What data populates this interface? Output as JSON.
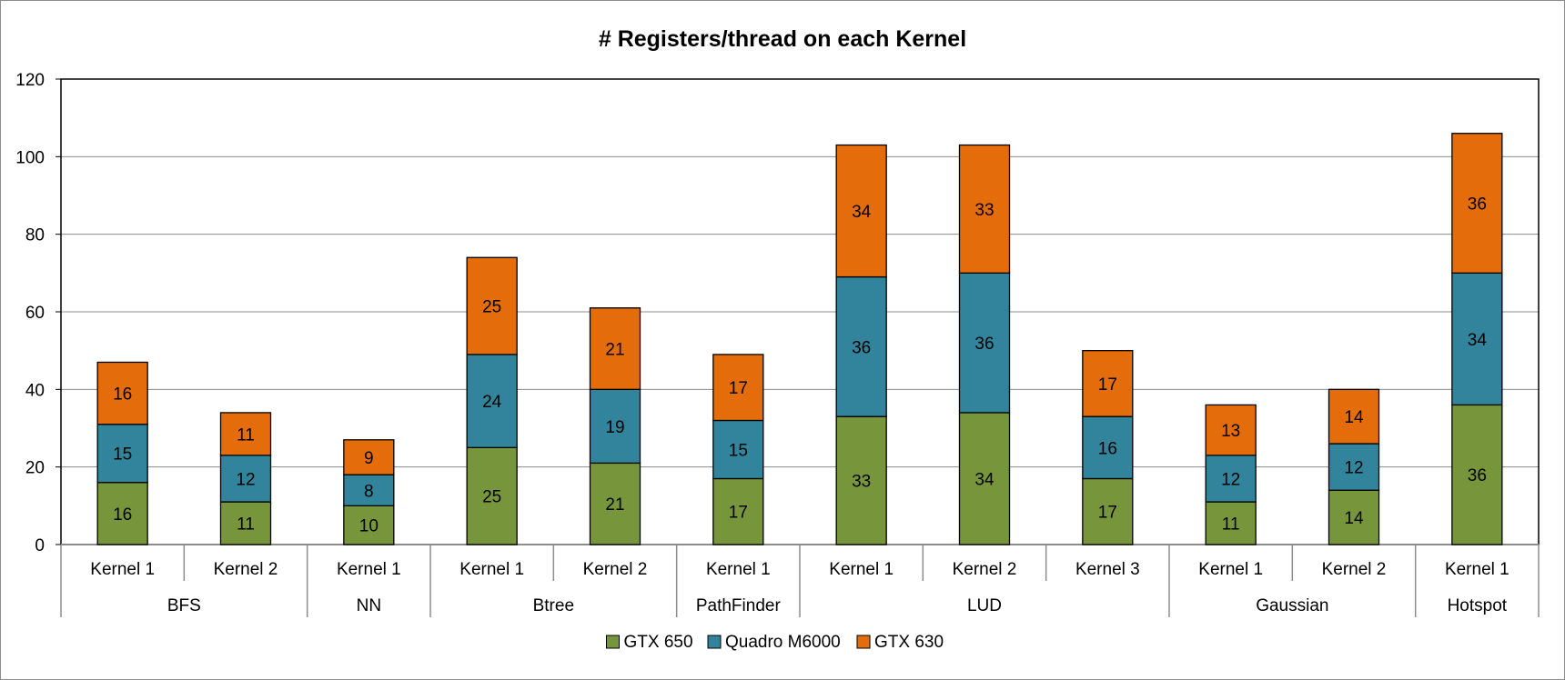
{
  "chart_data": {
    "type": "bar",
    "stacked": true,
    "title": "# Registers/thread on each Kernel",
    "xlabel": "",
    "ylabel": "",
    "ylim": [
      0,
      120
    ],
    "yticks": [
      0,
      20,
      40,
      60,
      80,
      100,
      120
    ],
    "grid": true,
    "legend_position": "bottom",
    "categories": [
      "Kernel 1",
      "Kernel 2",
      "Kernel 1",
      "Kernel 1",
      "Kernel 2",
      "Kernel 1",
      "Kernel 1",
      "Kernel 2",
      "Kernel 3",
      "Kernel 1",
      "Kernel 2",
      "Kernel 1"
    ],
    "groups": [
      {
        "label": "BFS",
        "count": 2
      },
      {
        "label": "NN",
        "count": 1
      },
      {
        "label": "Btree",
        "count": 2
      },
      {
        "label": "PathFinder",
        "count": 1
      },
      {
        "label": "LUD",
        "count": 3
      },
      {
        "label": "Gaussian",
        "count": 2
      },
      {
        "label": "Hotspot",
        "count": 1
      }
    ],
    "series": [
      {
        "name": "GTX 650",
        "color": "#77963c",
        "values": [
          16,
          11,
          10,
          25,
          21,
          17,
          33,
          34,
          17,
          11,
          14,
          36
        ]
      },
      {
        "name": "Quadro M6000",
        "color": "#31849b",
        "values": [
          15,
          12,
          8,
          24,
          19,
          15,
          36,
          36,
          16,
          12,
          12,
          34
        ]
      },
      {
        "name": "GTX 630",
        "color": "#e46c0a",
        "values": [
          16,
          11,
          9,
          25,
          21,
          17,
          34,
          33,
          17,
          13,
          14,
          36
        ]
      }
    ]
  }
}
